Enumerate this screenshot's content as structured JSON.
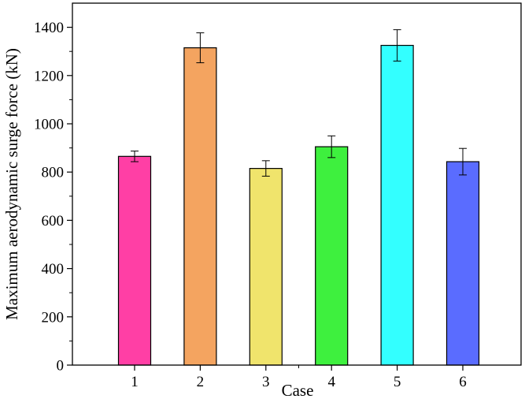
{
  "chart_data": {
    "type": "bar",
    "xlabel": "Case",
    "ylabel": "Maximum aerodynamic surge force (kN)",
    "categories": [
      "1",
      "2",
      "3",
      "4",
      "5",
      "6"
    ],
    "values": [
      865,
      1315,
      815,
      905,
      1325,
      843
    ],
    "errors": [
      22,
      62,
      32,
      45,
      65,
      55
    ],
    "colors": [
      "#ff3fa5",
      "#f4a460",
      "#f0e46c",
      "#3ef03e",
      "#33ffff",
      "#5a6cff"
    ],
    "ylim": [
      0,
      1500
    ],
    "yticks": [
      0,
      200,
      400,
      600,
      800,
      1000,
      1200,
      1400
    ],
    "grid": false,
    "legend": "none"
  }
}
